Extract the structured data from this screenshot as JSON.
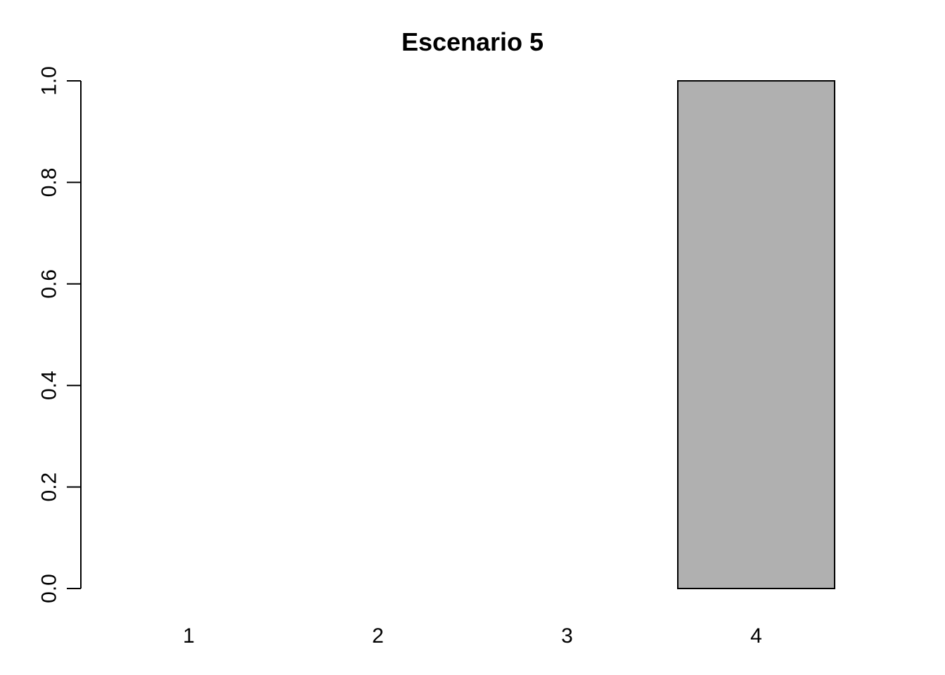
{
  "chart_data": {
    "type": "bar",
    "title": "Escenario 5",
    "xlabel": "",
    "ylabel": "",
    "categories": [
      "1",
      "2",
      "3",
      "4"
    ],
    "values": [
      0,
      0,
      0,
      1
    ],
    "ylim": [
      0,
      1
    ],
    "y_ticks": [
      "0.0",
      "0.2",
      "0.4",
      "0.6",
      "0.8",
      "1.0"
    ],
    "grid": false,
    "bar_fill": "#b0b0b0",
    "bar_border": "#000000"
  }
}
